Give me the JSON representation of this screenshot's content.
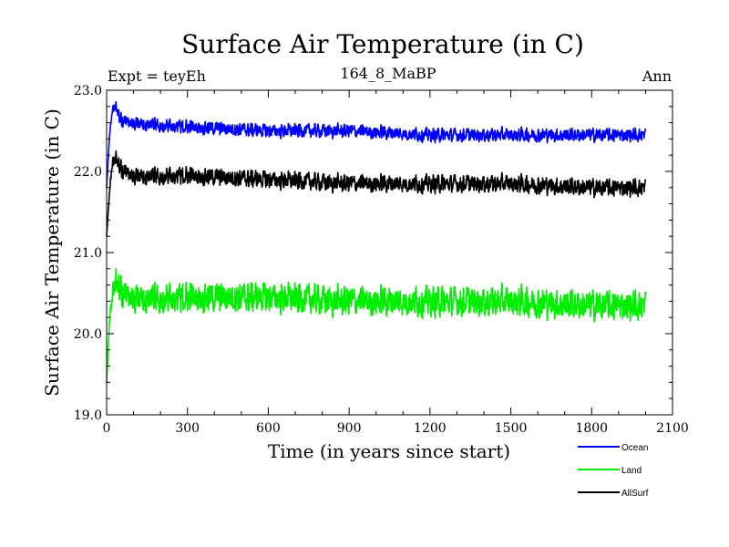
{
  "chart_data": {
    "type": "line",
    "title": "Surface Air Temperature (in C)",
    "subtitle_left": "Expt = teyEh",
    "subtitle_center": "164_8_MaBP",
    "subtitle_right": "Ann",
    "xlabel": "Time (in years since start)",
    "ylabel": "Surface Air Temperature (in C)",
    "xlim": [
      0,
      2100
    ],
    "ylim": [
      19.0,
      23.0
    ],
    "xticks": [
      0,
      300,
      600,
      900,
      1200,
      1500,
      1800,
      2100
    ],
    "xtick_labels": [
      "0",
      "300",
      "600",
      "900",
      "1200",
      "1500",
      "1800",
      "2100"
    ],
    "yticks": [
      19.0,
      20.0,
      21.0,
      22.0,
      23.0
    ],
    "ytick_labels": [
      "19.0",
      "20.0",
      "21.0",
      "22.0",
      "23.0"
    ],
    "x_range": [
      0,
      2000
    ],
    "series": [
      {
        "name": "Ocean",
        "color": "#0000ff",
        "anchors_x": [
          0,
          10,
          20,
          30,
          50,
          100,
          300,
          600,
          900,
          1200,
          1500,
          1800,
          2000
        ],
        "anchors_y": [
          21.8,
          22.4,
          22.75,
          22.8,
          22.65,
          22.6,
          22.55,
          22.5,
          22.5,
          22.45,
          22.45,
          22.45,
          22.45
        ],
        "amplitude": 0.1
      },
      {
        "name": "Land",
        "color": "#00ee00",
        "anchors_x": [
          0,
          10,
          20,
          30,
          50,
          100,
          300,
          600,
          900,
          1200,
          1500,
          1800,
          2000
        ],
        "anchors_y": [
          19.4,
          20.1,
          20.5,
          20.6,
          20.55,
          20.45,
          20.45,
          20.45,
          20.4,
          20.4,
          20.4,
          20.35,
          20.35
        ],
        "amplitude": 0.22
      },
      {
        "name": "AllSurf",
        "color": "#000000",
        "anchors_x": [
          0,
          10,
          20,
          30,
          50,
          100,
          300,
          600,
          900,
          1200,
          1500,
          1800,
          2000
        ],
        "anchors_y": [
          21.2,
          21.7,
          22.1,
          22.15,
          22.05,
          21.95,
          21.95,
          21.9,
          21.85,
          21.85,
          21.85,
          21.8,
          21.8
        ],
        "amplitude": 0.13
      }
    ]
  }
}
